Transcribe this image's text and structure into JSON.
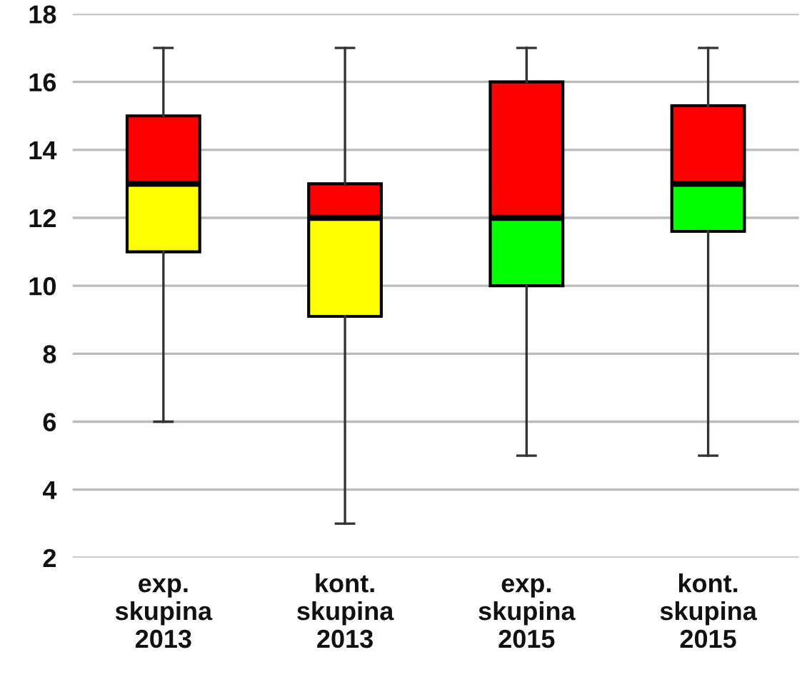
{
  "chart_data": {
    "type": "box",
    "categories": [
      "exp.\nskupina\n2013",
      "kont.\nskupina\n2013",
      "exp.\nskupina\n2015",
      "kont.\nskupina\n2015"
    ],
    "boxes": [
      {
        "low": 6,
        "q1": 11,
        "median": 13,
        "q3": 15,
        "high": 17
      },
      {
        "low": 3,
        "q1": 9.1,
        "median": 12,
        "q3": 13,
        "high": 17
      },
      {
        "low": 5,
        "q1": 10,
        "median": 12,
        "q3": 16,
        "high": 17
      },
      {
        "low": 5,
        "q1": 11.6,
        "median": 13,
        "q3": 15.3,
        "high": 17
      }
    ],
    "colors": [
      [
        "#ffff00",
        "#ff0000"
      ],
      [
        "#ffff00",
        "#ff0000"
      ],
      [
        "#00ff00",
        "#ff0000"
      ],
      [
        "#00ff00",
        "#ff0000"
      ]
    ],
    "ylim": [
      2,
      18
    ],
    "yticks": [
      2,
      4,
      6,
      8,
      10,
      12,
      14,
      16,
      18
    ],
    "grid": "y",
    "legend": false
  }
}
